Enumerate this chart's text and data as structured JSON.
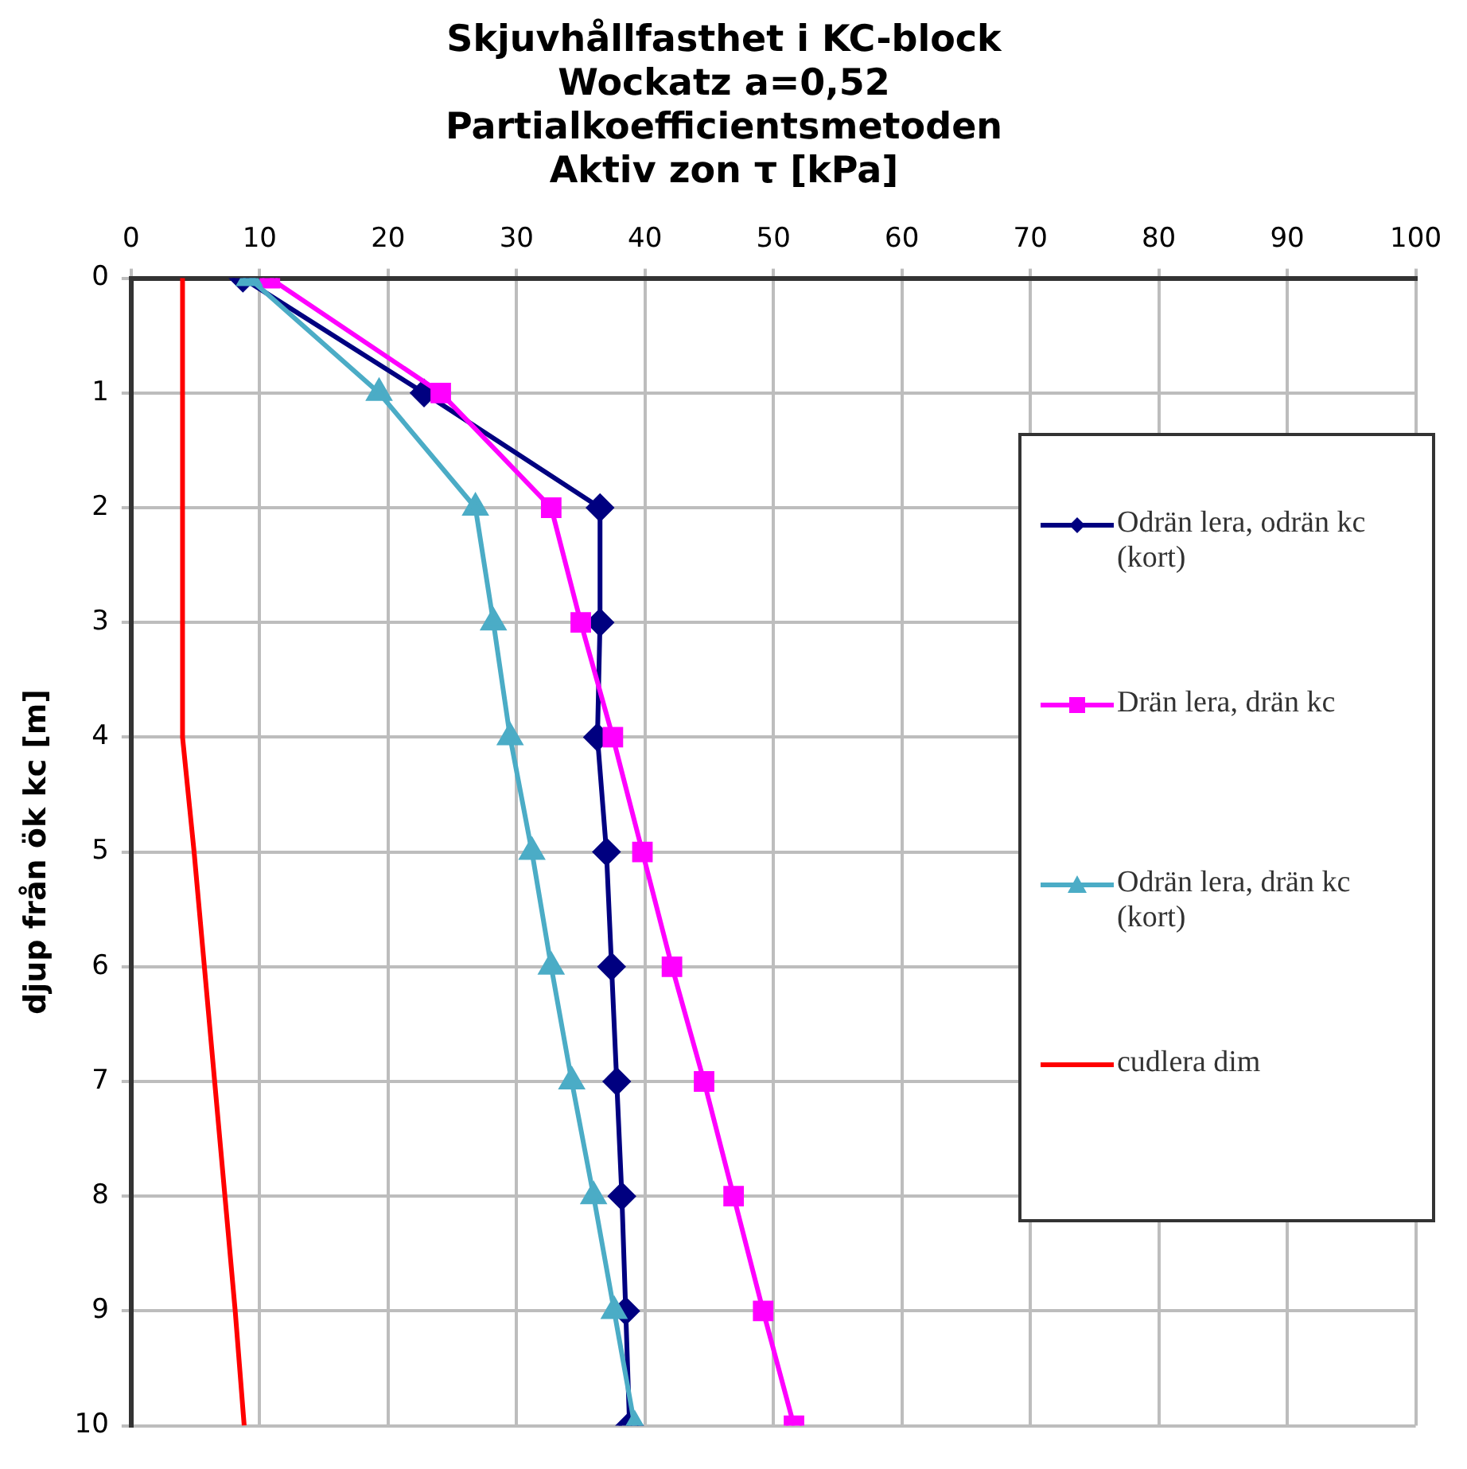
{
  "chart_data": {
    "type": "line",
    "title": "Skjuvhållfasthet i KC-block\nWockatz a=0,52\nPartialkoefficientsmetoden\nAktiv zon τ [kPa]",
    "ylabel": "djup från ök kc [m]",
    "orientation": "horizontal",
    "x": [
      0,
      1,
      2,
      3,
      4,
      5,
      6,
      7,
      8,
      9,
      10
    ],
    "series": [
      {
        "name": "Odrän lera, odrän kc (kort)",
        "color": "#000080",
        "marker": "diamond",
        "values": [
          8.7,
          22.8,
          36.5,
          36.5,
          36.3,
          37.0,
          37.4,
          37.8,
          38.2,
          38.5,
          38.8
        ]
      },
      {
        "name": "Drän lera, drän kc",
        "color": "#ff00ff",
        "marker": "square",
        "values": [
          10.8,
          24.1,
          32.7,
          35.0,
          37.5,
          39.8,
          42.1,
          44.6,
          46.9,
          49.2,
          51.6
        ]
      },
      {
        "name": "Odrän lera, drän kc (kort)",
        "color": "#4bacc6",
        "marker": "triangle",
        "values": [
          9.2,
          19.3,
          26.8,
          28.2,
          29.5,
          31.2,
          32.7,
          34.3,
          36.0,
          37.6,
          39.2
        ]
      },
      {
        "name": "cudlera dim",
        "color": "#ff0000",
        "marker": "none",
        "values": [
          4.0,
          4.0,
          4.0,
          4.0,
          4.0,
          4.9,
          5.7,
          6.5,
          7.3,
          8.1,
          8.8
        ]
      }
    ],
    "xlim": [
      0,
      100
    ],
    "xticks": [
      0,
      10,
      20,
      30,
      40,
      50,
      60,
      70,
      80,
      90,
      100
    ],
    "ylim": [
      10,
      0
    ],
    "yticks": [
      0,
      1,
      2,
      3,
      4,
      5,
      6,
      7,
      8,
      9,
      10
    ],
    "grid": true,
    "legend": "right"
  }
}
